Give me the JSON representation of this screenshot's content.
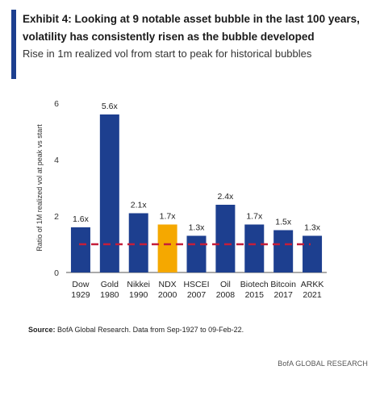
{
  "header": {
    "title": "Exhibit 4: Looking at 9 notable asset bubble in the last 100 years, volatility has consistently risen as the bubble developed",
    "subtitle": "Rise in 1m realized vol from start to peak for historical bubbles"
  },
  "source": {
    "label": "Source:",
    "text": "BofA Global Research. Data from Sep-1927 to 09-Feb-22."
  },
  "footer": {
    "brand": "BofA GLOBAL RESEARCH"
  },
  "colors": {
    "accent": "#1d3f8f",
    "bar": "#1d3f8f",
    "highlight": "#f5a800",
    "reference_line": "#c41e3a"
  },
  "chart_data": {
    "type": "bar",
    "ylabel": "Ratio of 1M realized vol at peak vs start",
    "ylim": [
      0,
      6
    ],
    "yticks": [
      0,
      2,
      4,
      6
    ],
    "categories": [
      [
        "Dow",
        "1929"
      ],
      [
        "Gold",
        "1980"
      ],
      [
        "Nikkei",
        "1990"
      ],
      [
        "NDX",
        "2000"
      ],
      [
        "HSCEI",
        "2007"
      ],
      [
        "Oil",
        "2008"
      ],
      [
        "Biotech",
        "2015"
      ],
      [
        "Bitcoin",
        "2017"
      ],
      [
        "ARKK",
        "2021"
      ]
    ],
    "values": [
      1.6,
      5.6,
      2.1,
      1.7,
      1.3,
      2.4,
      1.7,
      1.5,
      1.3
    ],
    "data_labels": [
      "1.6x",
      "5.6x",
      "2.1x",
      "1.7x",
      "1.3x",
      "2.4x",
      "1.7x",
      "1.5x",
      "1.3x"
    ],
    "highlight_index": 3,
    "reference_line": 1.0,
    "grid": false
  }
}
